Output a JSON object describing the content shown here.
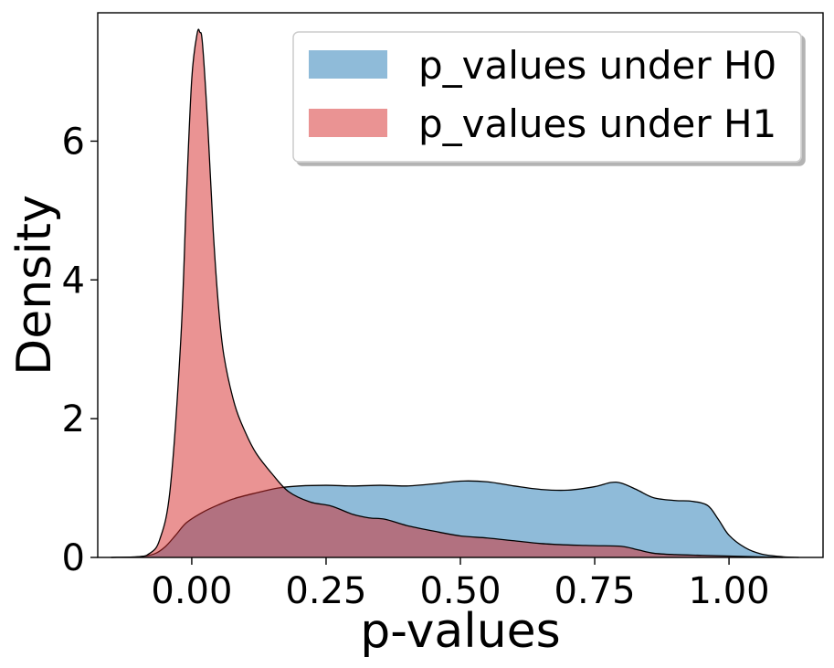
{
  "chart_data": {
    "type": "area",
    "title": "",
    "xlabel": "p-values",
    "ylabel": "Density",
    "xlim": [
      -0.175,
      1.175
    ],
    "ylim": [
      0,
      7.85
    ],
    "x_ticks": [
      0.0,
      0.25,
      0.5,
      0.75,
      1.0
    ],
    "x_tick_labels": [
      "0.00",
      "0.25",
      "0.50",
      "0.75",
      "1.00"
    ],
    "y_ticks": [
      0,
      2,
      4,
      6
    ],
    "y_tick_labels": [
      "0",
      "2",
      "4",
      "6"
    ],
    "grid": false,
    "legend_position": "top-right",
    "series": [
      {
        "name": "p_values under H0",
        "color": "#1f77b4",
        "x": [
          -0.15,
          -0.1,
          -0.07,
          -0.05,
          -0.03,
          -0.01,
          0.02,
          0.05,
          0.08,
          0.12,
          0.16,
          0.2,
          0.25,
          0.3,
          0.35,
          0.4,
          0.45,
          0.5,
          0.55,
          0.6,
          0.65,
          0.7,
          0.75,
          0.78,
          0.8,
          0.83,
          0.86,
          0.9,
          0.93,
          0.96,
          0.98,
          1.0,
          1.03,
          1.06,
          1.1,
          1.13
        ],
        "y": [
          0.0,
          0.01,
          0.05,
          0.15,
          0.32,
          0.5,
          0.65,
          0.76,
          0.85,
          0.93,
          1.0,
          1.03,
          1.04,
          1.03,
          1.04,
          1.03,
          1.06,
          1.1,
          1.09,
          1.03,
          0.98,
          0.97,
          1.02,
          1.08,
          1.07,
          0.97,
          0.86,
          0.82,
          0.81,
          0.75,
          0.55,
          0.32,
          0.14,
          0.05,
          0.01,
          0.0
        ]
      },
      {
        "name": "p_values under H1",
        "color": "#d62728",
        "x": [
          -0.15,
          -0.1,
          -0.08,
          -0.06,
          -0.04,
          -0.02,
          -0.01,
          0.0,
          0.01,
          0.015,
          0.02,
          0.03,
          0.04,
          0.05,
          0.06,
          0.08,
          0.1,
          0.12,
          0.15,
          0.18,
          0.22,
          0.26,
          0.3,
          0.33,
          0.36,
          0.4,
          0.45,
          0.5,
          0.55,
          0.6,
          0.65,
          0.7,
          0.75,
          0.8,
          0.83,
          0.86,
          0.9,
          0.95,
          1.0,
          1.05,
          1.1
        ],
        "y": [
          0.0,
          0.01,
          0.05,
          0.25,
          1.0,
          3.2,
          5.2,
          6.9,
          7.55,
          7.57,
          7.4,
          6.2,
          4.7,
          3.6,
          2.9,
          2.2,
          1.8,
          1.5,
          1.2,
          0.95,
          0.8,
          0.74,
          0.62,
          0.57,
          0.55,
          0.46,
          0.38,
          0.31,
          0.28,
          0.24,
          0.2,
          0.18,
          0.17,
          0.16,
          0.11,
          0.06,
          0.04,
          0.03,
          0.02,
          0.01,
          0.0
        ]
      }
    ]
  }
}
